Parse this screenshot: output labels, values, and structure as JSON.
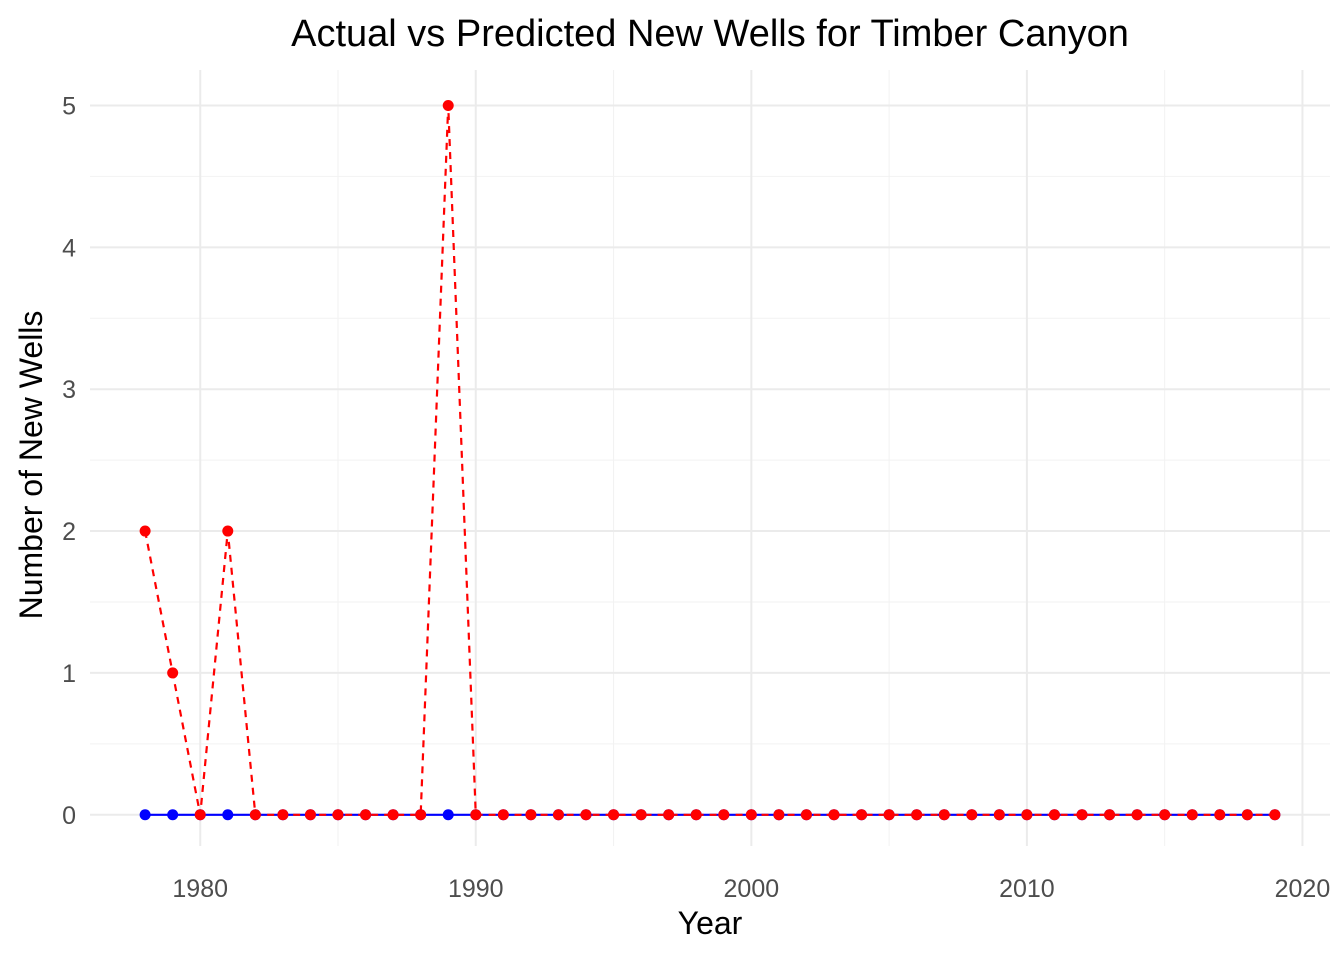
{
  "chart_data": {
    "type": "line",
    "title": "Actual vs Predicted New Wells for Timber Canyon",
    "xlabel": "Year",
    "ylabel": "Number of New Wells",
    "xlim": [
      1976,
      2021
    ],
    "ylim": [
      -0.22,
      5.25
    ],
    "x_ticks": [
      1980,
      1990,
      2000,
      2010,
      2020
    ],
    "x_tick_labels": [
      "1980",
      "1990",
      "2000",
      "2010",
      "2020"
    ],
    "y_ticks": [
      0,
      1,
      2,
      3,
      4,
      5
    ],
    "y_tick_labels": [
      "0",
      "1",
      "2",
      "3",
      "4",
      "5"
    ],
    "grid": true,
    "legend": "none",
    "x": [
      1978,
      1979,
      1980,
      1981,
      1982,
      1983,
      1984,
      1985,
      1986,
      1987,
      1988,
      1989,
      1990,
      1991,
      1992,
      1993,
      1994,
      1995,
      1996,
      1997,
      1998,
      1999,
      2000,
      2001,
      2002,
      2003,
      2004,
      2005,
      2006,
      2007,
      2008,
      2009,
      2010,
      2011,
      2012,
      2013,
      2014,
      2015,
      2016,
      2017,
      2018,
      2019
    ],
    "series": [
      {
        "color": "#0000ff",
        "line_style": "solid",
        "values": [
          0,
          0,
          0,
          0,
          0,
          0,
          0,
          0,
          0,
          0,
          0,
          0,
          0,
          0,
          0,
          0,
          0,
          0,
          0,
          0,
          0,
          0,
          0,
          0,
          0,
          0,
          0,
          0,
          0,
          0,
          0,
          0,
          0,
          0,
          0,
          0,
          0,
          0,
          0,
          0,
          0,
          0
        ]
      },
      {
        "color": "#ff0000",
        "line_style": "dashed",
        "values": [
          2,
          1,
          0,
          2,
          0,
          0,
          0,
          0,
          0,
          0,
          0,
          5,
          0,
          0,
          0,
          0,
          0,
          0,
          0,
          0,
          0,
          0,
          0,
          0,
          0,
          0,
          0,
          0,
          0,
          0,
          0,
          0,
          0,
          0,
          0,
          0,
          0,
          0,
          0,
          0,
          0,
          0
        ]
      }
    ]
  }
}
